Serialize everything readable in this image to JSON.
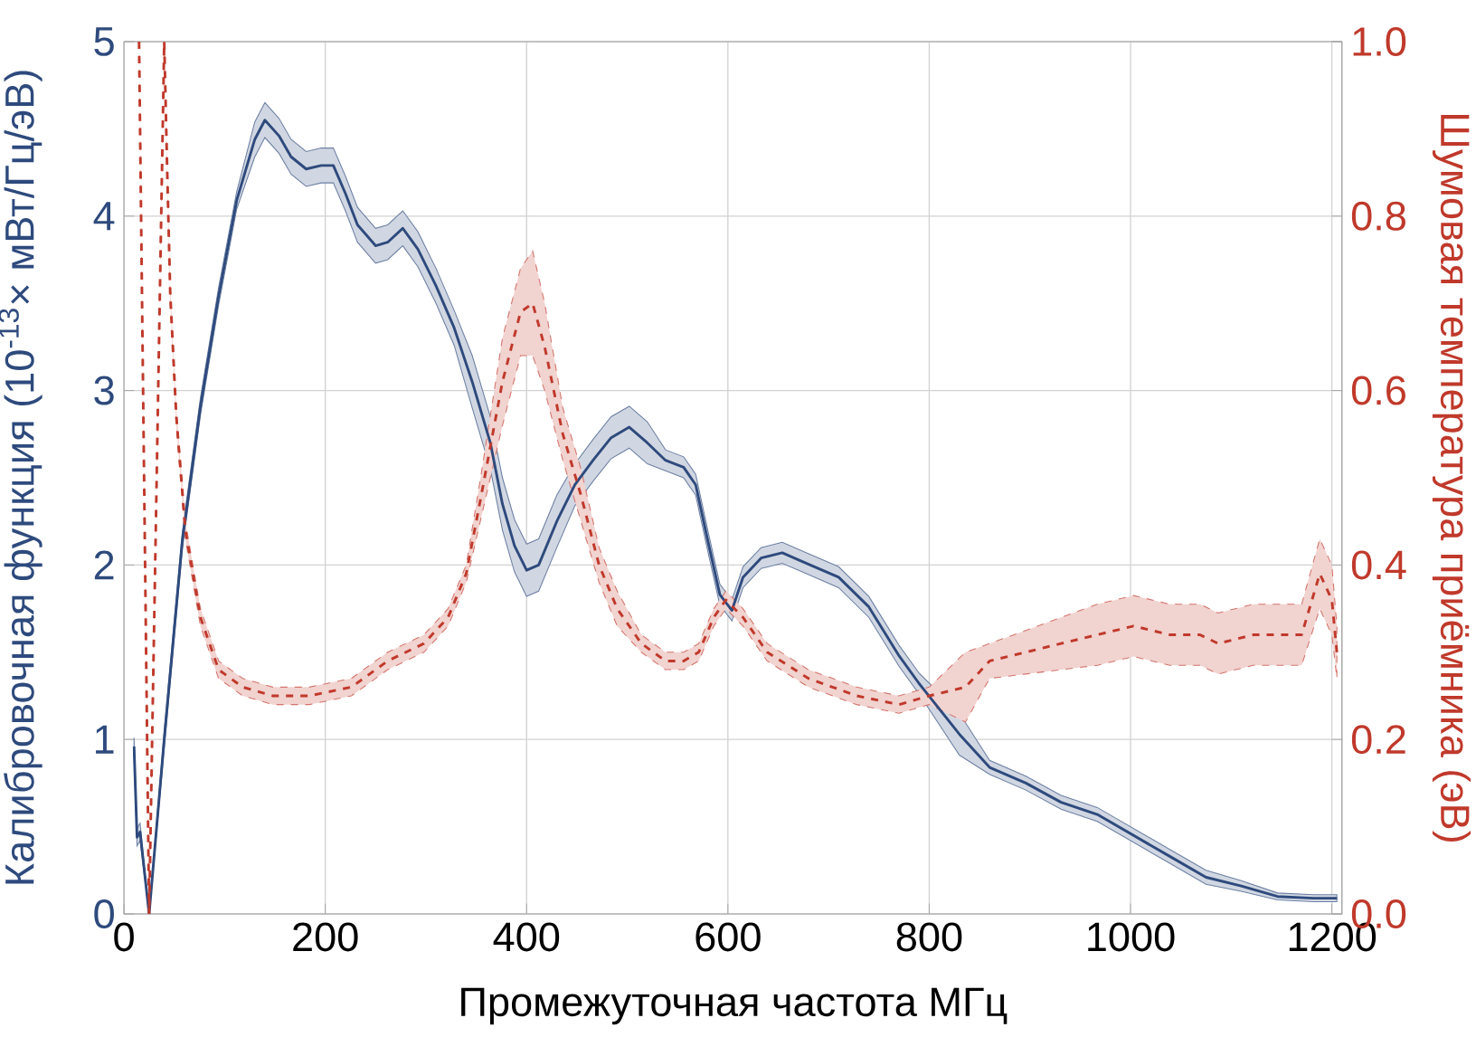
{
  "chart_data": {
    "type": "line",
    "xlabel": "Промежуточная частота МГц",
    "ylabel": "Калибровочная функция (10$^{-13}$× мВт/Гц/эВ)",
    "y2label": "Шумовая температура приёмника (эВ)",
    "xlim": [
      0,
      1210
    ],
    "ylim": [
      0,
      5
    ],
    "y2lim": [
      0,
      1
    ],
    "xticks": [
      0,
      200,
      400,
      600,
      800,
      1000,
      1200
    ],
    "yticks": [
      0,
      1,
      2,
      3,
      4,
      5
    ],
    "y2ticks": [
      {
        "value": 0,
        "label": "0.0"
      },
      {
        "value": 0.2,
        "label": "0.2"
      },
      {
        "value": 0.4,
        "label": "0.4"
      },
      {
        "value": 0.6,
        "label": "0.6"
      },
      {
        "value": 0.8,
        "label": "0.8"
      },
      {
        "value": 1,
        "label": "1.0"
      }
    ],
    "grid": true,
    "series": [
      {
        "color": "#2e4a7d",
        "line_style": "solid",
        "x": [
          10,
          13,
          16,
          25,
          40,
          58,
          76,
          94,
          112,
          130,
          140,
          154,
          166,
          181,
          196,
          208,
          220,
          232,
          250,
          262,
          277,
          292,
          310,
          328,
          346,
          364,
          376,
          388,
          400,
          412,
          430,
          448,
          466,
          484,
          502,
          520,
          538,
          556,
          568,
          580,
          592,
          604,
          615,
          633,
          654,
          674,
          710,
          740,
          770,
          790,
          830,
          860,
          896,
          931,
          967,
          1003,
          1039,
          1075,
          1110,
          1146,
          1182,
          1205
        ],
        "values": [
          0.96,
          0.44,
          0.47,
          0,
          1.0,
          2.14,
          2.91,
          3.54,
          4.09,
          4.44,
          4.55,
          4.46,
          4.34,
          4.27,
          4.29,
          4.29,
          4.13,
          3.95,
          3.83,
          3.85,
          3.93,
          3.81,
          3.6,
          3.36,
          3.05,
          2.7,
          2.35,
          2.11,
          1.97,
          2.0,
          2.25,
          2.46,
          2.6,
          2.73,
          2.79,
          2.7,
          2.6,
          2.56,
          2.46,
          2.14,
          1.83,
          1.74,
          1.93,
          2.04,
          2.07,
          2.02,
          1.93,
          1.76,
          1.48,
          1.32,
          1.03,
          0.84,
          0.75,
          0.64,
          0.57,
          0.45,
          0.33,
          0.21,
          0.16,
          0.1,
          0.09,
          0.09
        ],
        "lower": [
          0.91,
          0.39,
          0.42,
          0,
          0.95,
          2.09,
          2.86,
          3.49,
          4.04,
          4.34,
          4.45,
          4.36,
          4.24,
          4.17,
          4.19,
          4.19,
          4.03,
          3.85,
          3.73,
          3.75,
          3.83,
          3.71,
          3.5,
          3.26,
          2.9,
          2.55,
          2.2,
          1.96,
          1.82,
          1.85,
          2.1,
          2.34,
          2.48,
          2.61,
          2.67,
          2.58,
          2.54,
          2.5,
          2.4,
          2.08,
          1.77,
          1.68,
          1.87,
          1.98,
          2.01,
          1.96,
          1.87,
          1.7,
          1.42,
          1.26,
          0.91,
          0.8,
          0.71,
          0.6,
          0.53,
          0.41,
          0.29,
          0.17,
          0.13,
          0.08,
          0.07,
          0.07
        ],
        "upper": [
          1.01,
          0.49,
          0.52,
          0,
          1.05,
          2.19,
          2.96,
          3.59,
          4.14,
          4.54,
          4.65,
          4.56,
          4.44,
          4.37,
          4.39,
          4.39,
          4.23,
          4.05,
          3.93,
          3.95,
          4.03,
          3.91,
          3.7,
          3.46,
          3.2,
          2.85,
          2.5,
          2.26,
          2.12,
          2.15,
          2.4,
          2.58,
          2.72,
          2.85,
          2.91,
          2.82,
          2.66,
          2.62,
          2.52,
          2.2,
          1.89,
          1.8,
          1.99,
          2.1,
          2.13,
          2.08,
          1.99,
          1.82,
          1.54,
          1.38,
          1.15,
          0.88,
          0.79,
          0.68,
          0.61,
          0.49,
          0.37,
          0.25,
          0.19,
          0.12,
          0.11,
          0.11
        ]
      },
      {
        "color": "#c0392b",
        "line_style": "dashed",
        "axis": "y2",
        "x": [
          15,
          25,
          40,
          43,
          46,
          52,
          61,
          76,
          94,
          118,
          148,
          184,
          226,
          262,
          298,
          322,
          340,
          355,
          376,
          394,
          406,
          418,
          436,
          454,
          472,
          490,
          514,
          538,
          556,
          571,
          586,
          598,
          615,
          639,
          680,
          728,
          770,
          800,
          836,
          860,
          896,
          931,
          967,
          1003,
          1039,
          1069,
          1087,
          1122,
          1158,
          1170,
          1188,
          1200,
          1205
        ],
        "values": [
          1,
          0,
          1,
          0.85,
          0.71,
          0.57,
          0.44,
          0.34,
          0.28,
          0.26,
          0.25,
          0.25,
          0.26,
          0.29,
          0.31,
          0.34,
          0.39,
          0.48,
          0.61,
          0.69,
          0.7,
          0.65,
          0.55,
          0.48,
          0.4,
          0.35,
          0.31,
          0.29,
          0.29,
          0.3,
          0.34,
          0.36,
          0.34,
          0.3,
          0.27,
          0.25,
          0.24,
          0.25,
          0.26,
          0.29,
          0.3,
          0.31,
          0.32,
          0.33,
          0.32,
          0.32,
          0.31,
          0.32,
          0.32,
          0.32,
          0.39,
          0.36,
          0.3
        ],
        "lower": [
          1,
          0,
          1,
          0.84,
          0.7,
          0.56,
          0.43,
          0.33,
          0.27,
          0.25,
          0.24,
          0.24,
          0.25,
          0.28,
          0.3,
          0.33,
          0.38,
          0.455,
          0.56,
          0.64,
          0.64,
          0.6,
          0.52,
          0.45,
          0.38,
          0.33,
          0.3,
          0.28,
          0.28,
          0.29,
          0.33,
          0.35,
          0.33,
          0.29,
          0.26,
          0.24,
          0.23,
          0.24,
          0.22,
          0.27,
          0.275,
          0.28,
          0.285,
          0.295,
          0.285,
          0.285,
          0.275,
          0.285,
          0.285,
          0.285,
          0.35,
          0.32,
          0.27
        ],
        "upper": [
          1,
          0,
          1,
          0.86,
          0.72,
          0.58,
          0.45,
          0.35,
          0.29,
          0.27,
          0.26,
          0.26,
          0.27,
          0.3,
          0.32,
          0.35,
          0.4,
          0.505,
          0.66,
          0.74,
          0.76,
          0.7,
          0.58,
          0.51,
          0.42,
          0.37,
          0.32,
          0.3,
          0.3,
          0.31,
          0.35,
          0.37,
          0.35,
          0.31,
          0.28,
          0.26,
          0.25,
          0.26,
          0.3,
          0.31,
          0.325,
          0.34,
          0.355,
          0.365,
          0.355,
          0.355,
          0.345,
          0.355,
          0.355,
          0.355,
          0.43,
          0.4,
          0.33
        ]
      }
    ]
  }
}
